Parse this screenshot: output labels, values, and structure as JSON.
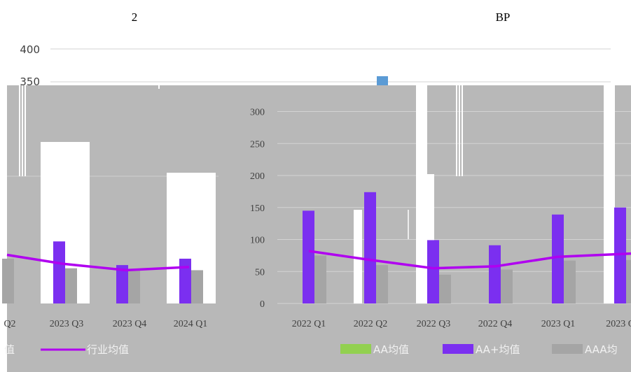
{
  "page": {
    "title_left": "2",
    "title_right": "BP"
  },
  "back_axis": {
    "ticks": [
      "400",
      "350"
    ]
  },
  "colors": {
    "panel_bg": "#b8b8b8",
    "grid": "#d4d4d4",
    "back_grid": "#dcdcdc",
    "aa": "#92d050",
    "aa_plus": "#7b2ff0",
    "aaa": "#a5a5a5",
    "industry": "#b000f0",
    "blue_marker": "#5b9bd5",
    "text": "#404040",
    "legend_text": "#f2f2f2"
  },
  "chart_data": [
    {
      "type": "bar",
      "panel": "left",
      "categories": [
        "Q2",
        "2023 Q3",
        "2023 Q4",
        "2024 Q1"
      ],
      "series": [
        {
          "name": "AA+均值",
          "type": "bar",
          "values": [
            null,
            97,
            60,
            70
          ]
        },
        {
          "name": "AAA均值",
          "type": "bar",
          "values": [
            70,
            55,
            52,
            52
          ]
        },
        {
          "name": "行业均值",
          "type": "line",
          "values": [
            76,
            62,
            52,
            57
          ]
        }
      ],
      "ylim": [
        0,
        400
      ],
      "legend": {
        "labels": [
          "值",
          "行业均值"
        ],
        "position": "bottom"
      }
    },
    {
      "type": "bar",
      "panel": "right",
      "categories": [
        "2022 Q1",
        "2022 Q2",
        "2022 Q3",
        "2022 Q4",
        "2023 Q1",
        "2023 Q"
      ],
      "yticks": [
        "0",
        "50",
        "100",
        "150",
        "200",
        "250",
        "300"
      ],
      "series": [
        {
          "name": "AA均值",
          "type": "bar",
          "values": [
            null,
            null,
            null,
            null,
            null,
            null
          ]
        },
        {
          "name": "AA+均值",
          "type": "bar",
          "values": [
            145,
            174,
            99,
            91,
            139,
            150
          ]
        },
        {
          "name": "AAA均值",
          "type": "bar",
          "values": [
            75,
            60,
            45,
            53,
            67,
            68
          ]
        },
        {
          "name": "行业均值",
          "type": "line",
          "values": [
            82,
            68,
            55,
            58,
            73,
            78
          ]
        }
      ],
      "ylim": [
        0,
        300
      ],
      "legend": {
        "labels": [
          "AA均值",
          "AA+均值",
          "AAA均"
        ],
        "position": "bottom"
      }
    }
  ]
}
